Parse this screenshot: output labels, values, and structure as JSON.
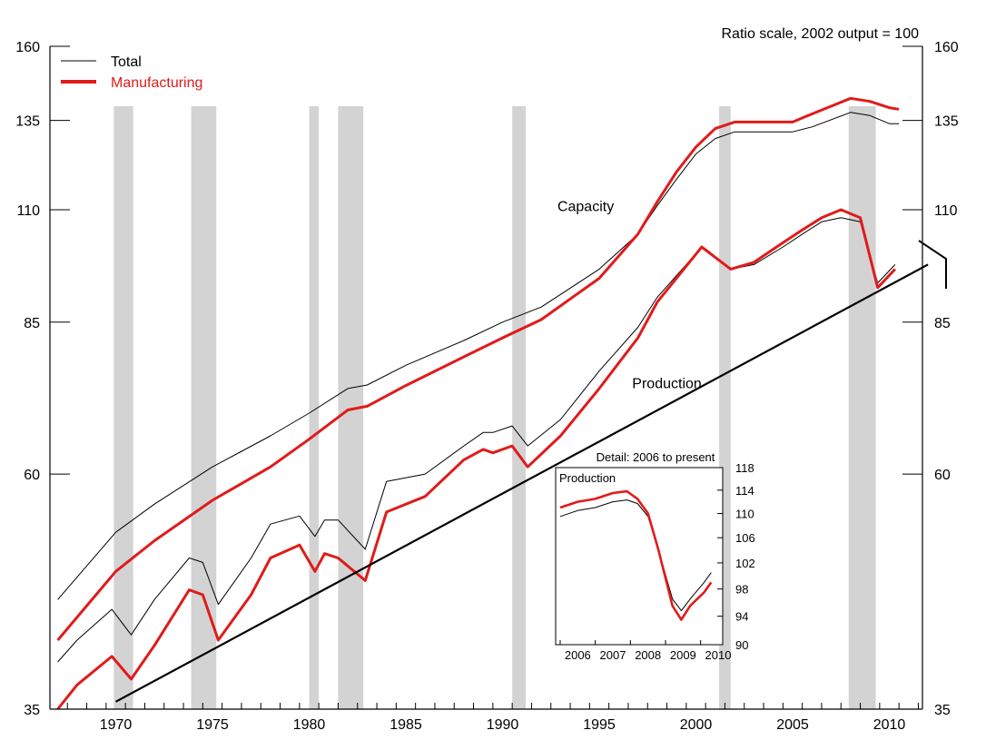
{
  "chart_data": {
    "type": "line",
    "note": "Ratio scale, 2002 output = 100",
    "y_scale": "log",
    "ylim": [
      35,
      160
    ],
    "xlim": [
      1967,
      2012
    ],
    "y_ticks": [
      35,
      60,
      85,
      110,
      135,
      160
    ],
    "x_ticks": [
      1970,
      1975,
      1980,
      1985,
      1990,
      1995,
      2000,
      2005,
      2010
    ],
    "legend": {
      "position": "top-left",
      "items": [
        {
          "name": "Total",
          "color": "#000000"
        },
        {
          "name": "Manufacturing",
          "color": "#e01b1b"
        }
      ]
    },
    "annotations": [
      {
        "text": "Capacity",
        "x": 1994.3,
        "y": 111
      },
      {
        "text": "Production",
        "x": 1998.5,
        "y": 74
      }
    ],
    "recessions": [
      [
        1969.9,
        1970.9
      ],
      [
        1973.9,
        1975.2
      ],
      [
        1980.0,
        1980.5
      ],
      [
        1981.5,
        1982.8
      ],
      [
        1990.5,
        1991.2
      ],
      [
        2001.2,
        2001.8
      ],
      [
        2007.9,
        2009.3
      ]
    ],
    "series": [
      {
        "name": "Total",
        "group": "Capacity",
        "color": "#000000",
        "x": [
          1967,
          1970,
          1972,
          1975,
          1978,
          1980,
          1982,
          1983,
          1985,
          1988,
          1990,
          1992,
          1995,
          1997,
          1998,
          1999,
          2000,
          2001,
          2002,
          2003,
          2005,
          2006,
          2008,
          2009,
          2010,
          2010.5
        ],
        "y": [
          45,
          52.5,
          56,
          61,
          65.5,
          69,
          73,
          73.6,
          77,
          81.5,
          85,
          88,
          96,
          104,
          111,
          118,
          125,
          129.5,
          131.5,
          131.5,
          131.5,
          133,
          137.5,
          136.5,
          134,
          134
        ]
      },
      {
        "name": "Manufacturing",
        "group": "Capacity",
        "color": "#e01b1b",
        "x": [
          1967,
          1970,
          1972,
          1975,
          1978,
          1980,
          1982,
          1983,
          1985,
          1988,
          1990,
          1992,
          1995,
          1997,
          1998,
          1999,
          2000,
          2001,
          2002,
          2003,
          2005,
          2006,
          2008,
          2009,
          2010,
          2010.5
        ],
        "y": [
          41,
          48,
          51.5,
          56.5,
          61,
          65,
          69.5,
          70.1,
          73.5,
          78.5,
          82,
          85.5,
          94,
          104,
          112,
          120,
          127,
          132.5,
          134.5,
          134.5,
          134.5,
          137,
          142,
          141,
          139,
          138.5
        ]
      },
      {
        "name": "Total",
        "group": "Production",
        "color": "#000000",
        "x": [
          1967,
          1968,
          1969.8,
          1970.8,
          1972,
          1973.8,
          1974.5,
          1975.3,
          1977,
          1978,
          1979.5,
          1980.3,
          1980.8,
          1981.5,
          1982.9,
          1984,
          1986,
          1988,
          1989,
          1989.5,
          1990.5,
          1991.3,
          1993,
          1995,
          1997,
          1998,
          2000.3,
          2001.8,
          2003,
          2004.5,
          2005.5,
          2006.5,
          2007.5,
          2008.5,
          2009.4,
          2010.3
        ],
        "y": [
          39,
          41,
          44,
          41.5,
          45,
          49.5,
          49,
          44.5,
          49.5,
          53.5,
          54.5,
          52,
          54,
          54,
          50.5,
          59,
          60,
          64,
          66,
          66,
          67,
          64,
          68,
          76,
          84,
          90,
          101,
          96,
          97,
          101,
          104,
          107,
          108,
          107,
          93,
          97
        ]
      },
      {
        "name": "Manufacturing",
        "group": "Production",
        "color": "#e01b1b",
        "x": [
          1967,
          1968,
          1969.8,
          1970.8,
          1972,
          1973.8,
          1974.5,
          1975.3,
          1977,
          1978,
          1979.5,
          1980.3,
          1980.8,
          1981.5,
          1982.9,
          1984,
          1986,
          1988,
          1989,
          1989.5,
          1990.5,
          1991.3,
          1993,
          1995,
          1997,
          1998,
          2000.3,
          2001.8,
          2003,
          2004.5,
          2005.5,
          2006.5,
          2007.5,
          2008.5,
          2009.4,
          2010.3
        ],
        "y": [
          35,
          37,
          39.5,
          37.5,
          40.5,
          46,
          45.5,
          41,
          45.5,
          49.5,
          51,
          48,
          50,
          49.5,
          47,
          55,
          57,
          62,
          63.5,
          63,
          64,
          61,
          65.5,
          73,
          82,
          89,
          101,
          96,
          97.5,
          102,
          105,
          108,
          110,
          108,
          92,
          96
        ]
      },
      {
        "name": "Trend",
        "group": "Reference",
        "color": "#000000",
        "x": [
          1970,
          2012
        ],
        "y": [
          35.6,
          97
        ]
      }
    ],
    "inset": {
      "title": "Detail: 2006 to present",
      "label": "Production",
      "y_scale": "log",
      "ylim": [
        90,
        118
      ],
      "xlim": [
        2006,
        2010.5
      ],
      "y_ticks": [
        90,
        94,
        98,
        102,
        106,
        110,
        114,
        118
      ],
      "x_ticks": [
        2006,
        2007,
        2008,
        2009,
        2010
      ],
      "series": [
        {
          "name": "Total",
          "color": "#000000",
          "x": [
            2006,
            2006.5,
            2007,
            2007.5,
            2007.9,
            2008.2,
            2008.5,
            2008.8,
            2009.2,
            2009.45,
            2009.7,
            2010.1,
            2010.3
          ],
          "y": [
            109.5,
            110.5,
            111,
            112,
            112.3,
            111.7,
            109.5,
            104,
            96.5,
            94.8,
            96.5,
            99,
            100.5
          ]
        },
        {
          "name": "Manufacturing",
          "color": "#e01b1b",
          "x": [
            2006,
            2006.5,
            2007,
            2007.5,
            2007.9,
            2008.2,
            2008.5,
            2008.8,
            2009.2,
            2009.45,
            2009.7,
            2010.1,
            2010.3
          ],
          "y": [
            111,
            112,
            112.5,
            113.5,
            113.8,
            112.5,
            110,
            104,
            95.5,
            93.5,
            95.5,
            97.5,
            99
          ]
        }
      ]
    }
  }
}
